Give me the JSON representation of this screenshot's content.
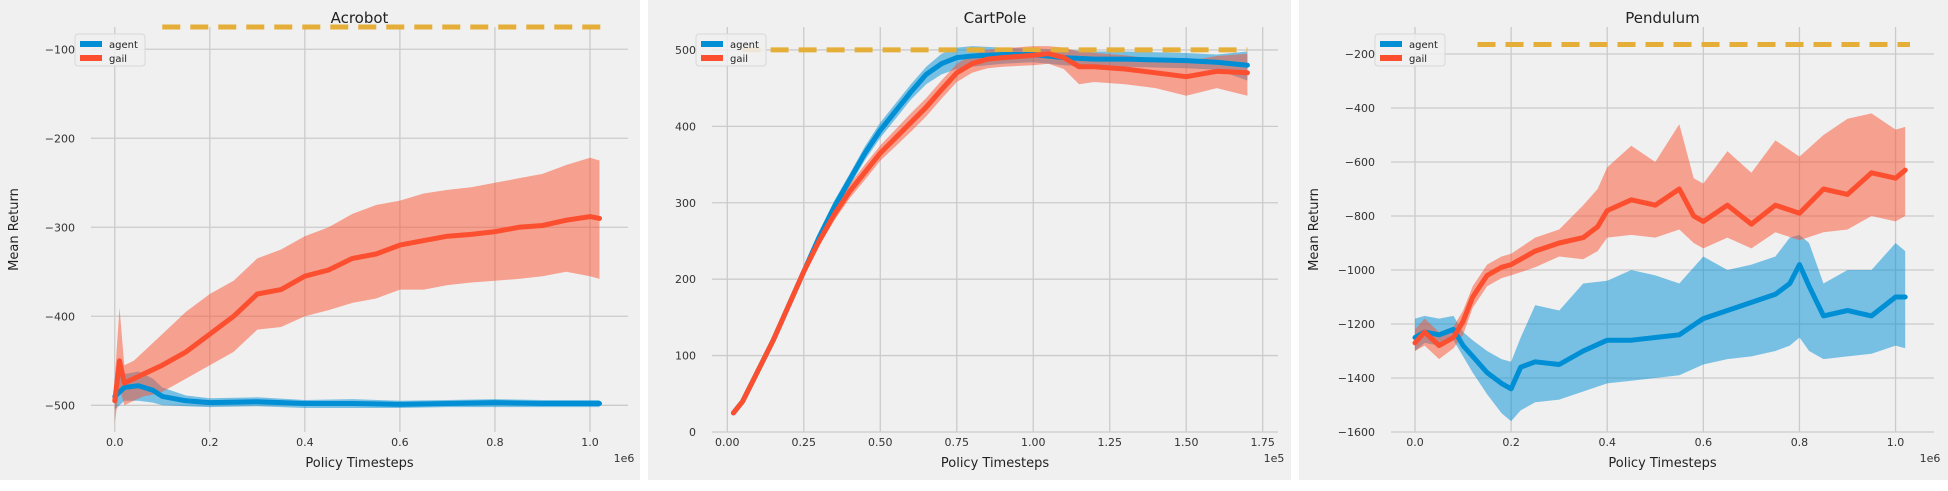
{
  "colors": {
    "agent": "#008fd5",
    "gail": "#fc4f30",
    "expert": "#e5ae38",
    "background": "#f0f0f0",
    "grid": "#cbcbcb"
  },
  "chart_data": [
    {
      "type": "line",
      "title": "Acrobot",
      "xlabel": "Policy Timesteps",
      "ylabel": "Mean Return",
      "x_scale_label": "1e6",
      "xlim": [
        -0.05,
        1.08
      ],
      "ylim": [
        -530,
        -75
      ],
      "xticks": [
        0.0,
        0.2,
        0.4,
        0.6,
        0.8,
        1.0
      ],
      "xtick_labels": [
        "0.0",
        "0.2",
        "0.4",
        "0.6",
        "0.8",
        "1.0"
      ],
      "yticks": [
        -500,
        -400,
        -300,
        -200,
        -100
      ],
      "ytick_labels": [
        "−500",
        "−400",
        "−300",
        "−200",
        "−100"
      ],
      "legend": {
        "position": "top-left",
        "entries": [
          "agent",
          "gail"
        ]
      },
      "expert_level": -75,
      "expert_x": [
        0.1,
        1.03
      ],
      "series": [
        {
          "name": "agent",
          "x": [
            0.0,
            0.02,
            0.05,
            0.08,
            0.1,
            0.15,
            0.2,
            0.3,
            0.4,
            0.5,
            0.6,
            0.7,
            0.8,
            0.9,
            1.0,
            1.02
          ],
          "values": [
            -490,
            -480,
            -478,
            -483,
            -490,
            -495,
            -497,
            -496,
            -498,
            -498,
            -499,
            -498,
            -497,
            -498,
            -498,
            -498
          ],
          "lower": [
            -505,
            -495,
            -495,
            -497,
            -500,
            -501,
            -502,
            -501,
            -503,
            -503,
            -503,
            -502,
            -502,
            -502,
            -502,
            -502
          ],
          "upper": [
            -470,
            -465,
            -462,
            -470,
            -480,
            -489,
            -492,
            -491,
            -494,
            -493,
            -495,
            -494,
            -493,
            -494,
            -494,
            -494
          ]
        },
        {
          "name": "gail",
          "x": [
            0.0,
            0.01,
            0.02,
            0.04,
            0.06,
            0.08,
            0.1,
            0.15,
            0.2,
            0.25,
            0.3,
            0.35,
            0.4,
            0.45,
            0.5,
            0.55,
            0.6,
            0.65,
            0.7,
            0.75,
            0.8,
            0.85,
            0.9,
            0.95,
            1.0,
            1.02
          ],
          "values": [
            -495,
            -450,
            -475,
            -470,
            -465,
            -460,
            -455,
            -440,
            -420,
            -400,
            -375,
            -370,
            -355,
            -348,
            -335,
            -330,
            -320,
            -315,
            -310,
            -308,
            -305,
            -300,
            -298,
            -292,
            -288,
            -290
          ],
          "lower": [
            -520,
            -480,
            -500,
            -495,
            -490,
            -488,
            -485,
            -470,
            -455,
            -440,
            -415,
            -412,
            -400,
            -393,
            -385,
            -380,
            -370,
            -370,
            -365,
            -362,
            -360,
            -358,
            -355,
            -350,
            -355,
            -358
          ],
          "upper": [
            -470,
            -390,
            -455,
            -450,
            -440,
            -430,
            -420,
            -395,
            -375,
            -360,
            -335,
            -325,
            -310,
            -300,
            -285,
            -275,
            -270,
            -262,
            -258,
            -255,
            -250,
            -245,
            -240,
            -230,
            -222,
            -225
          ]
        }
      ]
    },
    {
      "type": "line",
      "title": "CartPole",
      "xlabel": "Policy Timesteps",
      "ylabel": "Mean Return",
      "x_scale_label": "1e5",
      "xlim": [
        -0.05,
        1.8
      ],
      "ylim": [
        0,
        530
      ],
      "xticks": [
        0.0,
        0.25,
        0.5,
        0.75,
        1.0,
        1.25,
        1.5,
        1.75
      ],
      "xtick_labels": [
        "0.00",
        "0.25",
        "0.50",
        "0.75",
        "1.00",
        "1.25",
        "1.50",
        "1.75"
      ],
      "yticks": [
        0,
        100,
        200,
        300,
        400,
        500
      ],
      "ytick_labels": [
        "0",
        "100",
        "200",
        "300",
        "400",
        "500"
      ],
      "legend": {
        "position": "top-left",
        "entries": [
          "agent",
          "gail"
        ]
      },
      "expert_level": 500,
      "expert_x": [
        0.05,
        1.7
      ],
      "series": [
        {
          "name": "agent",
          "x": [
            0.02,
            0.05,
            0.1,
            0.15,
            0.2,
            0.25,
            0.3,
            0.35,
            0.4,
            0.45,
            0.5,
            0.55,
            0.6,
            0.65,
            0.7,
            0.75,
            0.8,
            0.9,
            1.0,
            1.1,
            1.2,
            1.3,
            1.4,
            1.5,
            1.6,
            1.7
          ],
          "values": [
            25,
            40,
            80,
            120,
            165,
            210,
            255,
            295,
            330,
            365,
            395,
            420,
            445,
            468,
            482,
            490,
            492,
            494,
            494,
            490,
            488,
            488,
            487,
            486,
            484,
            480
          ],
          "lower": [
            23,
            38,
            77,
            117,
            160,
            203,
            248,
            287,
            322,
            356,
            385,
            410,
            435,
            455,
            468,
            475,
            478,
            482,
            484,
            480,
            478,
            478,
            477,
            476,
            474,
            460
          ],
          "upper": [
            27,
            42,
            83,
            123,
            170,
            217,
            262,
            303,
            338,
            374,
            405,
            430,
            455,
            478,
            495,
            503,
            505,
            503,
            502,
            500,
            498,
            498,
            497,
            496,
            494,
            498
          ]
        },
        {
          "name": "gail",
          "x": [
            0.02,
            0.05,
            0.1,
            0.15,
            0.2,
            0.25,
            0.3,
            0.35,
            0.4,
            0.45,
            0.5,
            0.55,
            0.6,
            0.65,
            0.7,
            0.75,
            0.8,
            0.85,
            0.9,
            1.0,
            1.05,
            1.1,
            1.15,
            1.2,
            1.3,
            1.4,
            1.5,
            1.6,
            1.7
          ],
          "values": [
            25,
            40,
            80,
            120,
            165,
            210,
            250,
            285,
            315,
            340,
            365,
            385,
            405,
            425,
            448,
            470,
            482,
            488,
            490,
            493,
            495,
            490,
            478,
            478,
            475,
            470,
            465,
            472,
            470
          ],
          "lower": [
            23,
            38,
            77,
            117,
            160,
            204,
            243,
            277,
            306,
            330,
            355,
            374,
            393,
            413,
            436,
            458,
            470,
            476,
            478,
            480,
            482,
            475,
            455,
            458,
            455,
            450,
            440,
            450,
            440
          ],
          "upper": [
            27,
            42,
            83,
            123,
            170,
            216,
            257,
            293,
            324,
            350,
            375,
            396,
            417,
            437,
            460,
            482,
            494,
            500,
            502,
            505,
            505,
            503,
            498,
            496,
            493,
            488,
            485,
            492,
            495
          ]
        }
      ]
    },
    {
      "type": "line",
      "title": "Pendulum",
      "xlabel": "Policy Timesteps",
      "ylabel": "Mean Return",
      "x_scale_label": "1e6",
      "xlim": [
        -0.05,
        1.08
      ],
      "ylim": [
        -1600,
        -100
      ],
      "xticks": [
        0.0,
        0.2,
        0.4,
        0.6,
        0.8,
        1.0
      ],
      "xtick_labels": [
        "0.0",
        "0.2",
        "0.4",
        "0.6",
        "0.8",
        "1.0"
      ],
      "yticks": [
        -1600,
        -1400,
        -1200,
        -1000,
        -800,
        -600,
        -400,
        -200
      ],
      "ytick_labels": [
        "−1600",
        "−1400",
        "−1200",
        "−1000",
        "−800",
        "−600",
        "−400",
        "−200"
      ],
      "legend": {
        "position": "top-left",
        "entries": [
          "agent",
          "gail"
        ]
      },
      "expert_level": -165,
      "expert_x": [
        0.13,
        1.03
      ],
      "series": [
        {
          "name": "agent",
          "x": [
            0.0,
            0.02,
            0.05,
            0.08,
            0.1,
            0.12,
            0.15,
            0.18,
            0.2,
            0.22,
            0.25,
            0.3,
            0.35,
            0.4,
            0.45,
            0.5,
            0.55,
            0.6,
            0.65,
            0.7,
            0.75,
            0.78,
            0.8,
            0.82,
            0.85,
            0.9,
            0.95,
            1.0,
            1.02
          ],
          "values": [
            -1250,
            -1230,
            -1240,
            -1220,
            -1280,
            -1320,
            -1380,
            -1420,
            -1440,
            -1360,
            -1340,
            -1350,
            -1300,
            -1260,
            -1260,
            -1250,
            -1240,
            -1180,
            -1150,
            -1120,
            -1090,
            -1050,
            -980,
            -1060,
            -1170,
            -1150,
            -1170,
            -1100,
            -1100
          ],
          "lower": [
            -1300,
            -1270,
            -1280,
            -1260,
            -1320,
            -1380,
            -1460,
            -1530,
            -1560,
            -1520,
            -1490,
            -1480,
            -1450,
            -1420,
            -1410,
            -1400,
            -1390,
            -1350,
            -1330,
            -1320,
            -1300,
            -1280,
            -1250,
            -1300,
            -1330,
            -1320,
            -1310,
            -1280,
            -1290
          ],
          "upper": [
            -1180,
            -1170,
            -1180,
            -1170,
            -1230,
            -1260,
            -1300,
            -1330,
            -1340,
            -1250,
            -1130,
            -1150,
            -1050,
            -1040,
            -1000,
            -1020,
            -1050,
            -950,
            -1000,
            -980,
            -950,
            -880,
            -870,
            -900,
            -1050,
            -1000,
            -1000,
            -900,
            -930
          ]
        },
        {
          "name": "gail",
          "x": [
            0.0,
            0.02,
            0.05,
            0.08,
            0.1,
            0.12,
            0.15,
            0.18,
            0.2,
            0.25,
            0.3,
            0.35,
            0.38,
            0.4,
            0.45,
            0.5,
            0.55,
            0.58,
            0.6,
            0.65,
            0.7,
            0.75,
            0.8,
            0.85,
            0.9,
            0.95,
            1.0,
            1.02
          ],
          "values": [
            -1270,
            -1230,
            -1280,
            -1250,
            -1190,
            -1100,
            -1020,
            -990,
            -980,
            -930,
            -900,
            -880,
            -840,
            -780,
            -740,
            -760,
            -700,
            -800,
            -820,
            -760,
            -830,
            -760,
            -790,
            -700,
            -720,
            -640,
            -660,
            -630
          ],
          "lower": [
            -1300,
            -1280,
            -1330,
            -1290,
            -1240,
            -1140,
            -1060,
            -1030,
            -1020,
            -990,
            -950,
            -960,
            -930,
            -880,
            -870,
            -880,
            -850,
            -900,
            -920,
            -880,
            -920,
            -860,
            -890,
            -860,
            -850,
            -800,
            -820,
            -800
          ],
          "upper": [
            -1220,
            -1180,
            -1230,
            -1210,
            -1150,
            -1060,
            -980,
            -950,
            -940,
            -880,
            -850,
            -760,
            -700,
            -620,
            -540,
            -600,
            -460,
            -660,
            -680,
            -560,
            -640,
            -520,
            -580,
            -500,
            -440,
            -420,
            -480,
            -470
          ]
        }
      ]
    }
  ]
}
